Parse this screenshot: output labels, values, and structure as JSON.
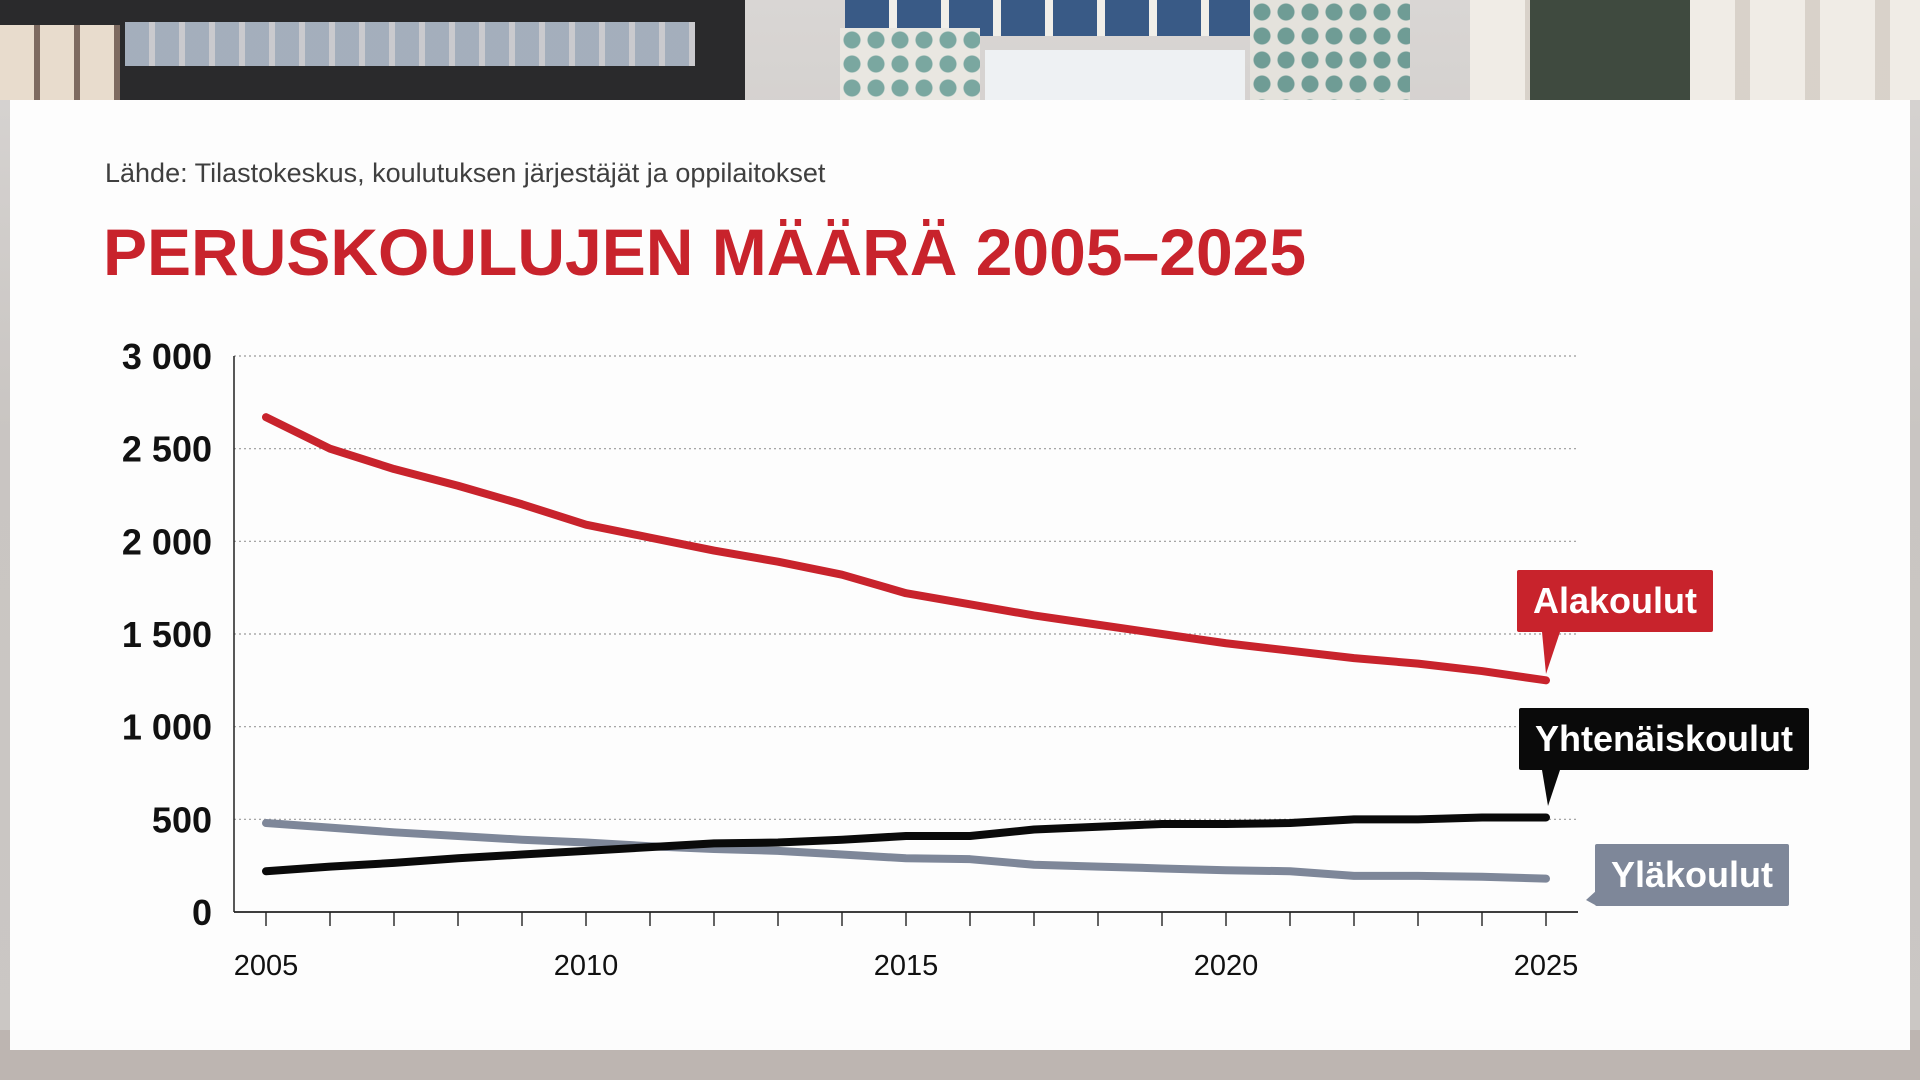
{
  "source": "Lähde: Tilastokeskus, koulutuksen järjestäjät ja oppilaitokset",
  "title": "PERUSKOULUJEN MÄÄRÄ 2005–2025",
  "colors": {
    "alakoulut": "#c8232c",
    "yhtenaiskoulut": "#0a0a0a",
    "ylakoulut": "#7e8799",
    "title": "#c8232c"
  },
  "chart_data": {
    "type": "line",
    "title": "PERUSKOULUJEN MÄÄRÄ 2005–2025",
    "xlabel": "",
    "ylabel": "",
    "xlim": [
      2005,
      2025
    ],
    "ylim": [
      0,
      3000
    ],
    "grid": true,
    "x_tick_labels": [
      "2005",
      "2010",
      "2015",
      "2020",
      "2025"
    ],
    "y_tick_labels": [
      "3 000",
      "2 500",
      "2 000",
      "1 500",
      "1 000",
      "500",
      "0"
    ],
    "x": [
      2005,
      2006,
      2007,
      2008,
      2009,
      2010,
      2011,
      2012,
      2013,
      2014,
      2015,
      2016,
      2017,
      2018,
      2019,
      2020,
      2021,
      2022,
      2023,
      2024,
      2025
    ],
    "series": [
      {
        "name": "Alakoulut",
        "color": "#c8232c",
        "values": [
          2670,
          2500,
          2390,
          2300,
          2200,
          2090,
          2020,
          1950,
          1890,
          1820,
          1720,
          1660,
          1600,
          1550,
          1500,
          1450,
          1410,
          1370,
          1340,
          1300,
          1250
        ]
      },
      {
        "name": "Yhtenäiskoulut",
        "color": "#0a0a0a",
        "values": [
          220,
          245,
          265,
          290,
          310,
          330,
          350,
          370,
          375,
          390,
          410,
          410,
          445,
          460,
          475,
          475,
          480,
          500,
          500,
          510,
          510
        ]
      },
      {
        "name": "Yläkoulut",
        "color": "#7e8799",
        "values": [
          480,
          455,
          430,
          410,
          390,
          375,
          355,
          340,
          330,
          310,
          290,
          285,
          255,
          245,
          235,
          225,
          220,
          195,
          195,
          190,
          180
        ]
      }
    ]
  }
}
